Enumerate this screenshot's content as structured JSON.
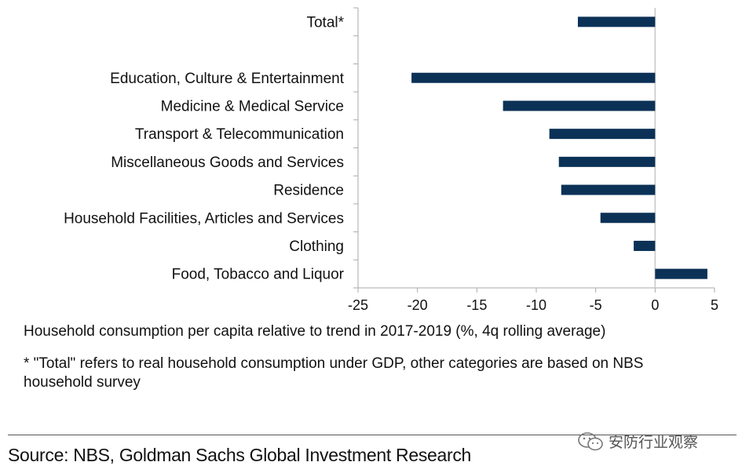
{
  "chart_data": {
    "type": "bar",
    "orientation": "horizontal",
    "categories": [
      "Total*",
      "",
      "Education, Culture & Entertainment",
      "Medicine & Medical Service",
      "Transport & Telecommunication",
      "Miscellaneous Goods and Services",
      "Residence",
      "Household Facilities, Articles and Services",
      "Clothing",
      "Food, Tobacco and Liquor"
    ],
    "values": [
      -6.5,
      null,
      -20.5,
      -12.8,
      -8.9,
      -8.1,
      -7.9,
      -4.6,
      -1.8,
      4.4
    ],
    "xlim": [
      -25,
      5
    ],
    "xticks": [
      -25,
      -20,
      -15,
      -10,
      -5,
      0,
      5
    ],
    "bar_color": "#0b3156",
    "xlabel": "Household consumption per capita relative to trend in 2017-2019 (%, 4q rolling average)",
    "ylabel": "",
    "title": ""
  },
  "footnote": "* \"Total\" refers to real household consumption under GDP, other categories are based on NBS household survey",
  "source": "Source: NBS, Goldman Sachs Global Investment Research",
  "watermark": "安防行业观察",
  "watermark_icon": "wechat-icon"
}
